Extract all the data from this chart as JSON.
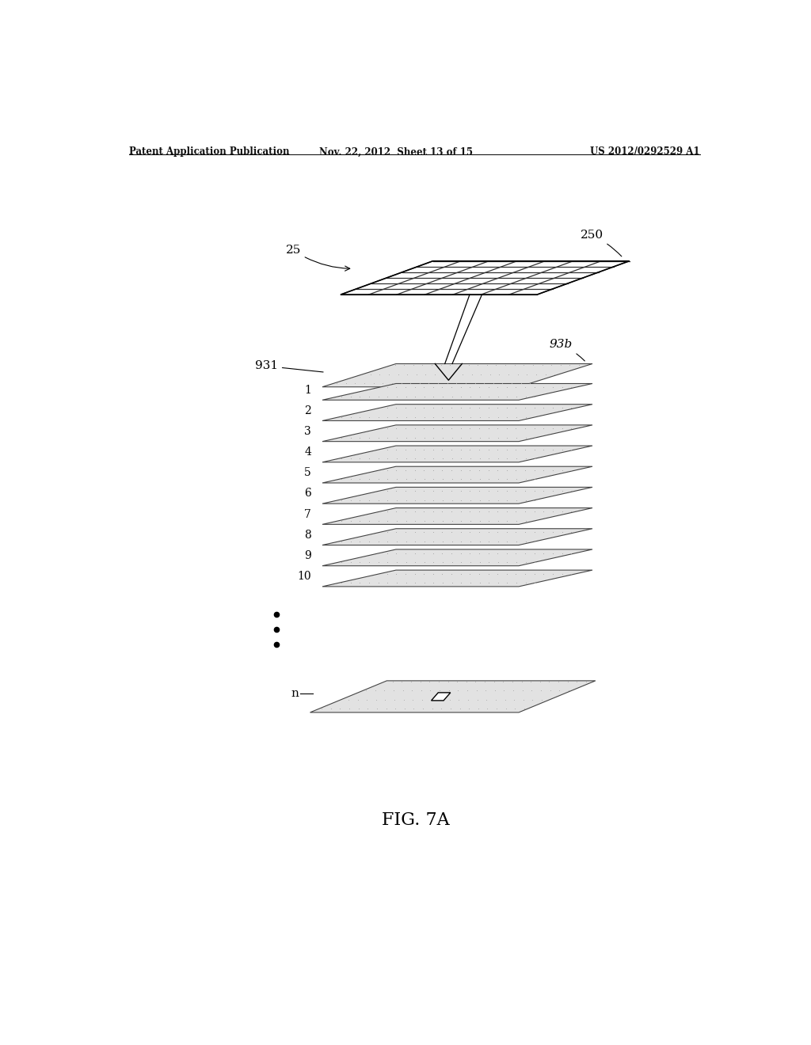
{
  "header_left": "Patent Application Publication",
  "header_mid": "Nov. 22, 2012  Sheet 13 of 15",
  "header_right": "US 2012/0292529 A1",
  "fig_label": "FIG. 7A",
  "bg_color": "#ffffff",
  "grid_line_color": "#333333",
  "layer_fill_color": "#e0e0e0",
  "layer_edge_color": "#555555",
  "dot_color": "#aaaaaa",
  "label_250": "250",
  "label_25": "25",
  "label_931": "931",
  "label_93b": "93b",
  "layer_numbers": [
    "1",
    "2",
    "3",
    "4",
    "5",
    "6",
    "7",
    "8",
    "9",
    "10"
  ],
  "label_n": "n",
  "grid_rows": 6,
  "grid_cols": 7,
  "n_stack_layers": 10
}
